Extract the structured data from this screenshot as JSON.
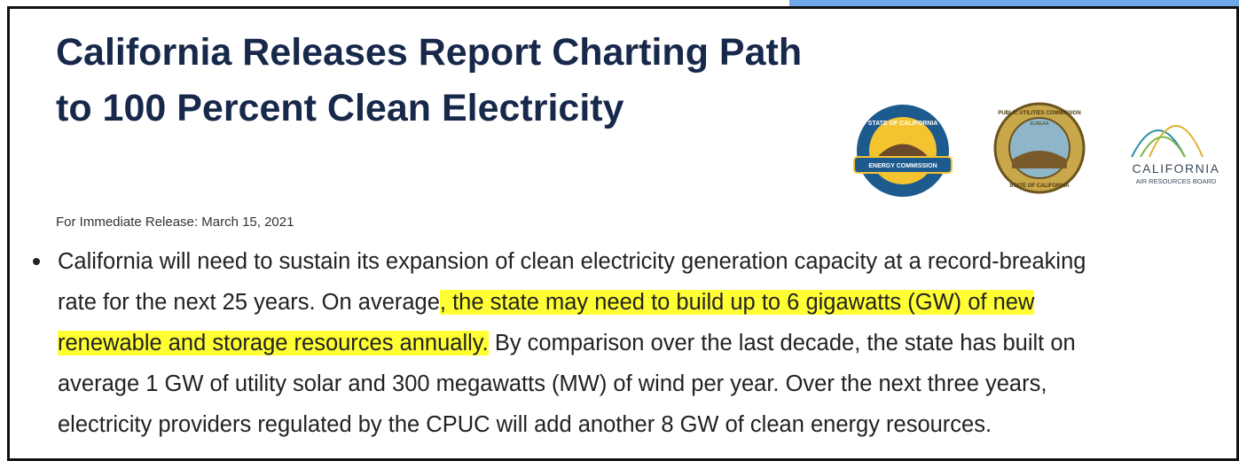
{
  "header": {
    "title": "California Releases Report Charting Path to 100 Percent Clean Electricity"
  },
  "logos": [
    {
      "lines": [
        "STATE OF CALIFORNIA",
        "ENERGY COMMISSION"
      ]
    },
    {
      "lines": [
        "PUBLIC UTILITIES COMMISSION",
        "EUREKA",
        "STATE OF CALIFORNIA"
      ]
    },
    {
      "lines": [
        "CALIFORNIA",
        "AIR RESOURCES BOARD"
      ]
    }
  ],
  "release": "For Immediate Release: March 15, 2021",
  "bullet": {
    "lines": [
      [
        {
          "text": "California will need to sustain its expansion of clean electricity generation capacity at a record-breaking",
          "highlight": false
        }
      ],
      [
        {
          "text": "rate for the next 25 years. On average",
          "highlight": false
        },
        {
          "text": ", the state may need to build up to 6 gigawatts (GW) of new",
          "highlight": true
        }
      ],
      [
        {
          "text": "renewable and storage resources annually.",
          "highlight": true
        },
        {
          "text": " By comparison over the last decade, the state has built on",
          "highlight": false
        }
      ],
      [
        {
          "text": "average 1 GW of utility solar and 300 megawatts (MW) of wind per year. Over the next three years,",
          "highlight": false
        }
      ],
      [
        {
          "text": "electricity providers regulated by the CPUC will add another 8 GW of clean energy resources.",
          "highlight": false
        }
      ]
    ]
  }
}
